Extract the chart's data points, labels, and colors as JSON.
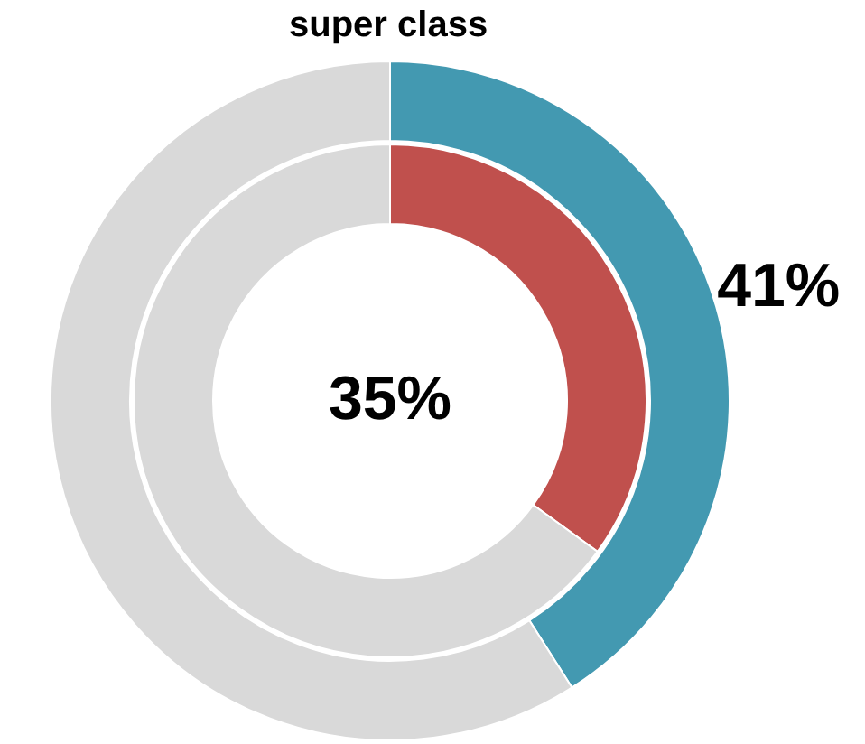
{
  "chart_data": {
    "type": "donut",
    "title": "super class",
    "categories": [
      null,
      null
    ],
    "series": [
      {
        "values": [
          41,
          59
        ],
        "colors": [
          "#4399b1",
          "#d9d9d9"
        ],
        "value_labels": [
          "41%",
          null
        ]
      },
      {
        "values": [
          35,
          65
        ],
        "colors": [
          "#c0504d",
          "#d9d9d9"
        ],
        "value_labels": [
          "35%",
          null
        ]
      }
    ]
  }
}
